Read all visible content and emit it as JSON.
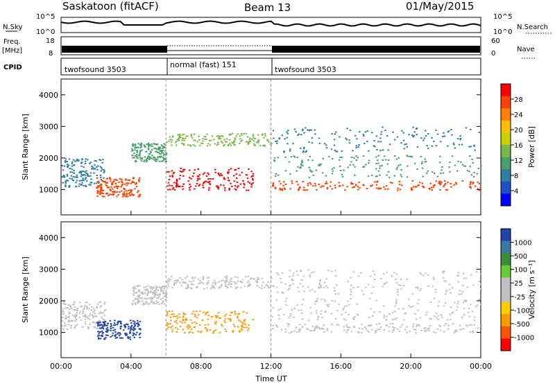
{
  "header": {
    "station": "Saskatoon (fitACF)",
    "beam": "Beam 13",
    "date": "01/May/2015"
  },
  "noise_panel": {
    "left_label": "N.Sky",
    "right_label": "N.Search",
    "left_ticks": [
      "10^5",
      "10^0"
    ],
    "right_ticks": [
      "10^5",
      "10^0"
    ]
  },
  "freq_panel": {
    "left_label_1": "Freq.",
    "left_label_2": "[MHz]",
    "left_ticks": [
      "18",
      "8"
    ],
    "right_label": "Nave",
    "right_ticks": [
      "60",
      "0"
    ]
  },
  "cpid_panel": {
    "label": "CPID",
    "segments": [
      {
        "label": "twofsound 3503",
        "start_hour": 0,
        "end_hour": 6
      },
      {
        "label": "normal (fast) 151",
        "start_hour": 6,
        "end_hour": 12
      },
      {
        "label": "twofsound 3503",
        "start_hour": 12,
        "end_hour": 24
      }
    ]
  },
  "chart_data": [
    {
      "type": "heatmap",
      "name": "power",
      "ylabel": "Slant Range [km]",
      "y_ticks": [
        "4000",
        "3000",
        "2000",
        "1000"
      ],
      "ylim": [
        200,
        4500
      ],
      "xlim": [
        0,
        24
      ],
      "colorbar": {
        "label": "Power [dB]",
        "ticks": [
          "28",
          "24",
          "20",
          "16",
          "12",
          "8",
          "4"
        ],
        "colors": [
          "#ff0000",
          "#ff4000",
          "#ff7f00",
          "#ffbf00",
          "#c8d200",
          "#7ab84a",
          "#4aa06a",
          "#2e7fa0",
          "#1e50c8",
          "#0000ff"
        ]
      }
    },
    {
      "type": "heatmap",
      "name": "velocity",
      "ylabel": "Slant Range [km]",
      "y_ticks": [
        "4000",
        "3000",
        "2000",
        "1000"
      ],
      "ylim": [
        200,
        4500
      ],
      "xlim": [
        0,
        24
      ],
      "xlabel": "Time UT",
      "x_ticks": [
        "00:00",
        "04:00",
        "08:00",
        "12:00",
        "16:00",
        "20:00",
        "00:00"
      ],
      "colorbar": {
        "label": "Velocity [m s⁻¹]",
        "ticks": [
          "1000",
          "500",
          "100",
          "25",
          "-25",
          "-100",
          "-500",
          "-1000"
        ],
        "colors": [
          "#2244aa",
          "#3a7aa0",
          "#3c8c3c",
          "#66cc33",
          "#c0c0c0",
          "#c0c0c0",
          "#ffcc00",
          "#ff9900",
          "#ff5500",
          "#ff0000"
        ]
      }
    }
  ]
}
